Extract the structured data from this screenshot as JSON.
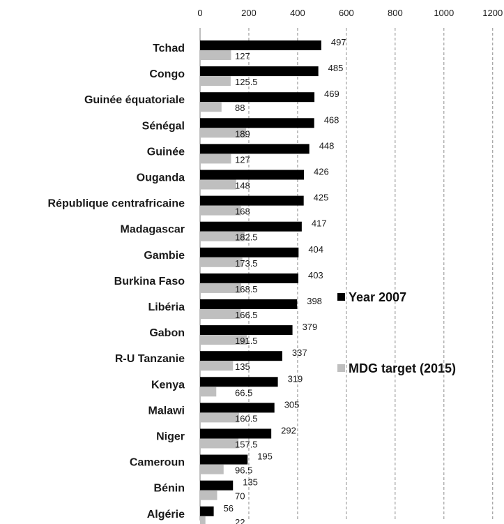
{
  "chart_data": {
    "type": "bar",
    "orientation": "horizontal",
    "categories": [
      "Tchad",
      "Congo",
      "Guinée équatoriale",
      "Sénégal",
      "Guinée",
      "Ouganda",
      "République centrafricaine",
      "Madagascar",
      "Gambie",
      "Burkina Faso",
      "Libéria",
      "Gabon",
      "R-U Tanzanie",
      "Kenya",
      "Malawi",
      "Niger",
      "Cameroun",
      "Bénin",
      "Algérie"
    ],
    "series": [
      {
        "name": "Year 2007",
        "color": "#000000",
        "values": [
          497,
          485,
          469,
          468,
          448,
          426,
          425,
          417,
          404,
          403,
          398,
          379,
          337,
          319,
          305,
          292,
          195,
          135,
          56
        ]
      },
      {
        "name": "MDG target  (2015)",
        "color": "#bfbfbf",
        "values": [
          127,
          125.5,
          88,
          189,
          127,
          148,
          168,
          182.5,
          173.5,
          168.5,
          166.5,
          191.5,
          135,
          66.5,
          160.5,
          157.5,
          96.5,
          70,
          22
        ]
      }
    ],
    "x_ticks": [
      "0",
      "200",
      "400",
      "600",
      "800",
      "1000",
      "1200"
    ],
    "xlim": [
      0,
      1200
    ],
    "title": "",
    "xlabel": "",
    "ylabel": "",
    "grid": "vertical dashed",
    "legend_position": "right"
  }
}
